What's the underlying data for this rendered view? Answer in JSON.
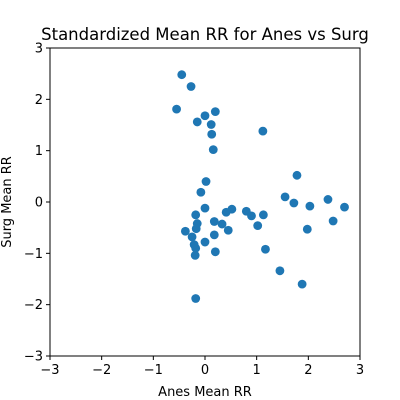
{
  "chart_data": {
    "type": "scatter",
    "title": "Standardized Mean RR for Anes vs Surg",
    "xlabel": "Anes Mean RR",
    "ylabel": "Surg Mean RR",
    "xlim": [
      -3,
      3
    ],
    "ylim": [
      -3,
      3
    ],
    "xticks": [
      -3,
      -2,
      -1,
      0,
      1,
      2,
      3
    ],
    "yticks": [
      -3,
      -2,
      -1,
      0,
      1,
      2,
      3
    ],
    "grid": false,
    "marker_color": "#1f77b4",
    "points": [
      {
        "x": -0.45,
        "y": 2.48
      },
      {
        "x": -0.27,
        "y": 2.25
      },
      {
        "x": -0.55,
        "y": 1.81
      },
      {
        "x": 0.0,
        "y": 1.68
      },
      {
        "x": 0.2,
        "y": 1.76
      },
      {
        "x": -0.15,
        "y": 1.56
      },
      {
        "x": 0.12,
        "y": 1.51
      },
      {
        "x": 0.13,
        "y": 1.32
      },
      {
        "x": 1.12,
        "y": 1.38
      },
      {
        "x": 0.16,
        "y": 1.02
      },
      {
        "x": 1.78,
        "y": 0.52
      },
      {
        "x": 0.02,
        "y": 0.4
      },
      {
        "x": -0.08,
        "y": 0.19
      },
      {
        "x": 1.55,
        "y": 0.1
      },
      {
        "x": 2.38,
        "y": 0.05
      },
      {
        "x": 1.72,
        "y": -0.02
      },
      {
        "x": 2.03,
        "y": -0.08
      },
      {
        "x": 2.7,
        "y": -0.1
      },
      {
        "x": 0.0,
        "y": -0.12
      },
      {
        "x": 0.52,
        "y": -0.14
      },
      {
        "x": 0.8,
        "y": -0.18
      },
      {
        "x": 0.41,
        "y": -0.2
      },
      {
        "x": 0.9,
        "y": -0.27
      },
      {
        "x": 1.13,
        "y": -0.25
      },
      {
        "x": -0.18,
        "y": -0.25
      },
      {
        "x": 2.48,
        "y": -0.37
      },
      {
        "x": 0.18,
        "y": -0.38
      },
      {
        "x": 0.33,
        "y": -0.43
      },
      {
        "x": -0.15,
        "y": -0.42
      },
      {
        "x": 1.02,
        "y": -0.46
      },
      {
        "x": 0.45,
        "y": -0.55
      },
      {
        "x": 1.98,
        "y": -0.53
      },
      {
        "x": -0.38,
        "y": -0.57
      },
      {
        "x": -0.17,
        "y": -0.52
      },
      {
        "x": 0.18,
        "y": -0.64
      },
      {
        "x": -0.25,
        "y": -0.68
      },
      {
        "x": 0.0,
        "y": -0.78
      },
      {
        "x": -0.21,
        "y": -0.83
      },
      {
        "x": -0.18,
        "y": -0.9
      },
      {
        "x": 1.17,
        "y": -0.92
      },
      {
        "x": 0.2,
        "y": -0.97
      },
      {
        "x": -0.19,
        "y": -1.04
      },
      {
        "x": 1.45,
        "y": -1.34
      },
      {
        "x": 1.88,
        "y": -1.6
      },
      {
        "x": -0.18,
        "y": -1.88
      }
    ]
  }
}
